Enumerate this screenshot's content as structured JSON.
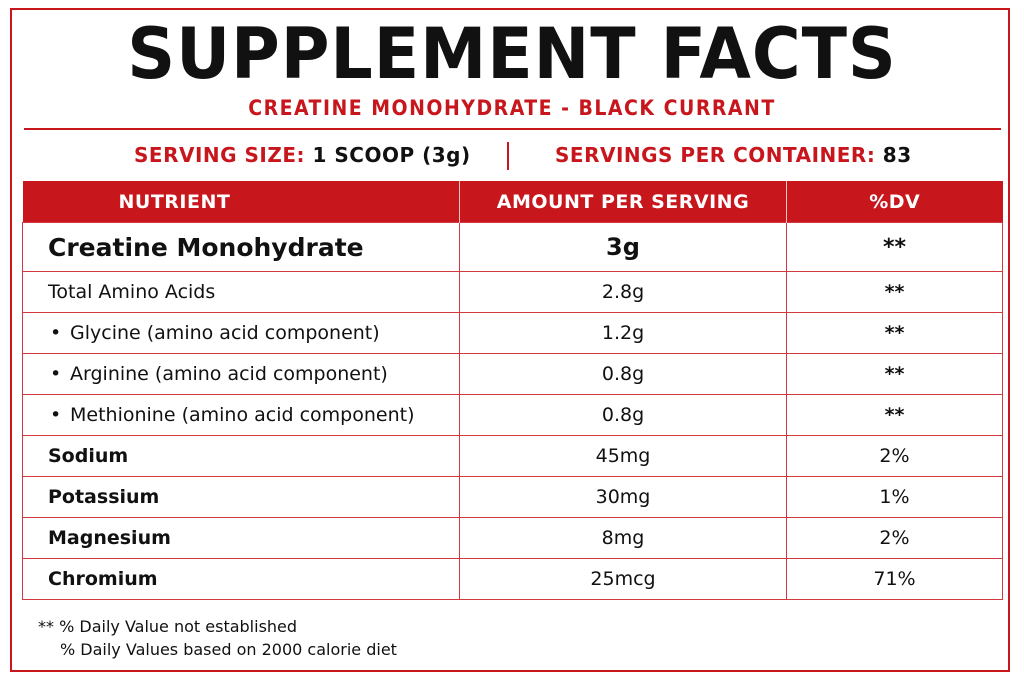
{
  "header": {
    "title": "SUPPLEMENT FACTS",
    "subtitle": "CREATINE MONOHYDRATE - BLACK CURRANT"
  },
  "serving": {
    "size_label": "SERVING SIZE:",
    "size_value": "1 SCOOP (3g)",
    "per_container_label": "SERVINGS PER CONTAINER:",
    "per_container_value": "83"
  },
  "table": {
    "columns": [
      "NUTRIENT",
      "AMOUNT PER SERVING",
      "%DV"
    ],
    "rows": [
      {
        "name": "Creatine Monohydrate",
        "note": "",
        "amount": "3g",
        "dv": "**"
      },
      {
        "name": "Total Amino Acids",
        "note": "",
        "amount": "2.8g",
        "dv": "**"
      },
      {
        "name": "Glycine",
        "note": "(amino acid component)",
        "amount": "1.2g",
        "dv": "**"
      },
      {
        "name": "Arginine",
        "note": "(amino acid component)",
        "amount": "0.8g",
        "dv": "**"
      },
      {
        "name": "Methionine",
        "note": "(amino acid component)",
        "amount": "0.8g",
        "dv": "**"
      },
      {
        "name": "Sodium",
        "note": "",
        "amount": "45mg",
        "dv": "2%"
      },
      {
        "name": "Potassium",
        "note": "",
        "amount": "30mg",
        "dv": "1%"
      },
      {
        "name": "Magnesium",
        "note": "",
        "amount": "8mg",
        "dv": "2%"
      },
      {
        "name": "Chromium",
        "note": "",
        "amount": "25mcg",
        "dv": "71%"
      }
    ]
  },
  "footnotes": {
    "line1": "** % Daily Value not established",
    "line2": "% Daily Values based on 2000 calorie diet"
  },
  "colors": {
    "accent": "#c8161d",
    "text": "#111111",
    "background": "#ffffff"
  }
}
